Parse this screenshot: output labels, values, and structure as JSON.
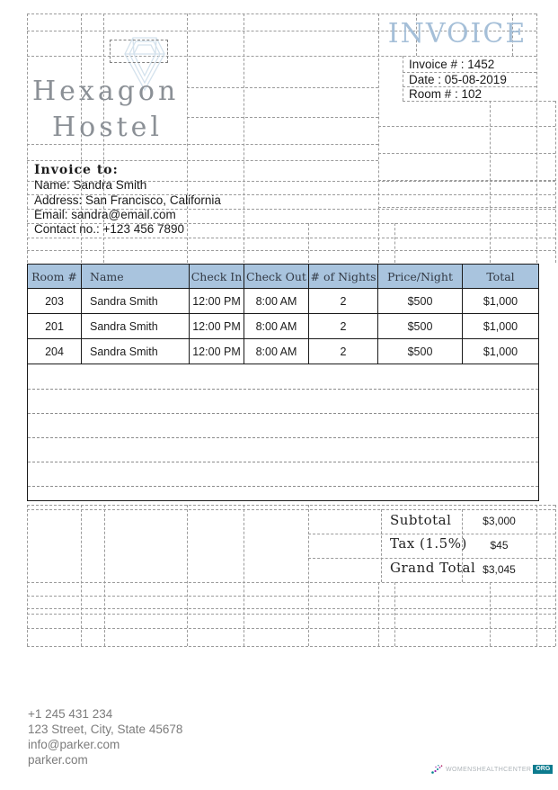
{
  "invoice": {
    "title": "INVOICE",
    "number": "Invoice # : 1452",
    "date": "Date : 05-08-2019",
    "room": "Room # : 102"
  },
  "brand": {
    "name_line1": "Hexagon",
    "name_line2": "Hostel",
    "logo_icon": "diamond-icon"
  },
  "bill_to": {
    "heading": "Invoice to:",
    "name": "Name: Sandra Smith",
    "address": "Address: San Francisco, California",
    "email": "Email: sandra@email.com",
    "contact": "Contact no.: +123 456 7890"
  },
  "table": {
    "headers": [
      "Room #",
      "Name",
      "Check In",
      "Check Out",
      "# of Nights",
      "Price/Night",
      "Total"
    ],
    "rows": [
      [
        "203",
        "Sandra Smith",
        "12:00 PM",
        "8:00 AM",
        "2",
        "$500",
        "$1,000"
      ],
      [
        "201",
        "Sandra Smith",
        "12:00 PM",
        "8:00 AM",
        "2",
        "$500",
        "$1,000"
      ],
      [
        "204",
        "Sandra Smith",
        "12:00 PM",
        "8:00 AM",
        "2",
        "$500",
        "$1,000"
      ]
    ]
  },
  "totals": {
    "subtotal_label": "Subtotal",
    "subtotal_value": "$3,000",
    "tax_label": "Tax (1.5%)",
    "tax_value": "$45",
    "grand_label": "Grand Total",
    "grand_value": "$3,045"
  },
  "footer": {
    "phone": "+1 245 431 234",
    "address": "123 Street, City, State 45678",
    "email": "info@parker.com",
    "website": "parker.com"
  },
  "watermark": {
    "text": "WOMENSHEALTHCENTER",
    "badge": "ORG"
  },
  "colors": {
    "title_blue": "#a5bfd8",
    "table_header_bg": "#a9c4de",
    "brand_gray": "#8b9096",
    "footer_gray": "#7c7c7c",
    "badge_teal": "#0c7b8e",
    "dot_purple": "#9c27b0",
    "dot_teal": "#00838f"
  }
}
